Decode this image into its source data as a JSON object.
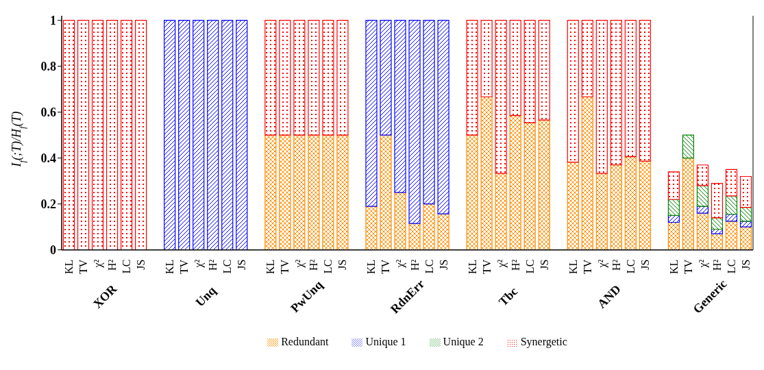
{
  "chart_data": {
    "type": "bar",
    "stacked": true,
    "ylabel": "I$_{f}$(;T)/H$_{f}$(T)",
    "categories": [
      "KL",
      "TV",
      "χ²",
      "H²",
      "LC",
      "JS",
      null,
      "KL",
      "TV",
      "χ²",
      "H²",
      "LC",
      "JS",
      null,
      "KL",
      "TV",
      "χ²",
      "H²",
      "LC",
      "JS",
      null,
      "KL",
      "TV",
      "χ²",
      "H²",
      "LC",
      "JS",
      null,
      "KL",
      "TV",
      "χ²",
      "H²",
      "LC",
      "JS",
      null,
      "KL",
      "TV",
      "χ²",
      "H²",
      "LC",
      "JS",
      null,
      "KL",
      "TV",
      "χ²",
      "H²",
      "LC",
      "JS"
    ],
    "annotations": [
      "XOR",
      "Unq",
      "PwUnq",
      "RdnErr",
      "Tbc",
      "AND",
      "Generic"
    ],
    "series": [
      {
        "name": "Redundant",
        "color": "#ff8c00",
        "values": [
          0,
          0,
          0,
          0,
          0,
          0,
          null,
          0,
          0,
          0,
          0,
          0,
          0,
          null,
          0.5,
          0.5,
          0.5,
          0.5,
          0.5,
          0.5,
          null,
          0.19,
          0.5,
          0.25,
          0.115,
          0.2,
          0.157,
          null,
          0.5,
          0.667,
          0.333,
          0.585,
          0.554,
          0.566,
          null,
          0.382,
          0.667,
          0.333,
          0.37,
          0.406,
          0.387,
          null,
          0.12,
          0.4,
          0.16,
          0.07,
          0.125,
          0.1
        ]
      },
      {
        "name": "Unique 1",
        "color": "#0000ff",
        "values": [
          0,
          0,
          0,
          0,
          0,
          0,
          null,
          1,
          1,
          1,
          1,
          1,
          1,
          null,
          0,
          0,
          0,
          0,
          0,
          0,
          null,
          0.81,
          0.5,
          0.75,
          0.885,
          0.8,
          0.843,
          null,
          0,
          0,
          0,
          0,
          0,
          0,
          null,
          0,
          0,
          0,
          0,
          0,
          0,
          null,
          0.03,
          0,
          0.03,
          0.02,
          0.03,
          0.025
        ]
      },
      {
        "name": "Unique 2",
        "color": "#008000",
        "values": [
          0,
          0,
          0,
          0,
          0,
          0,
          null,
          0,
          0,
          0,
          0,
          0,
          0,
          null,
          0,
          0,
          0,
          0,
          0,
          0,
          null,
          0,
          0,
          0,
          0,
          0,
          0,
          null,
          0,
          0,
          0,
          0,
          0,
          0,
          null,
          0,
          0,
          0,
          0,
          0,
          0,
          null,
          0.07,
          0.1,
          0.09,
          0.05,
          0.08,
          0.06
        ]
      },
      {
        "name": "Synergetic",
        "color": "#ff0000",
        "values": [
          1,
          1,
          1,
          1,
          1,
          1,
          null,
          0,
          0,
          0,
          0,
          0,
          0,
          null,
          0.5,
          0.5,
          0.5,
          0.5,
          0.5,
          0.5,
          null,
          0,
          0,
          0,
          0,
          0,
          0,
          null,
          0.5,
          0.333,
          0.667,
          0.415,
          0.446,
          0.434,
          null,
          0.618,
          0.333,
          0.667,
          0.63,
          0.594,
          0.613,
          null,
          0.12,
          0,
          0.09,
          0.15,
          0.115,
          0.135
        ]
      }
    ],
    "ylim": [
      0,
      1.02
    ],
    "yticks": [
      0,
      0.2,
      0.4,
      0.6,
      0.8,
      1
    ],
    "grid": false,
    "legend": "bottom"
  }
}
